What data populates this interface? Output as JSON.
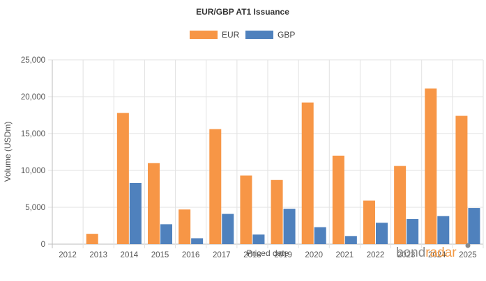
{
  "chart_data": {
    "type": "bar",
    "title": "EUR/GBP AT1 Issuance",
    "xlabel": "Priced date",
    "ylabel": "Volume (USDm)",
    "categories": [
      "2012",
      "2013",
      "2014",
      "2015",
      "2016",
      "2017",
      "2018",
      "2019",
      "2020",
      "2021",
      "2022",
      "2023",
      "2024",
      "2025"
    ],
    "series": [
      {
        "name": "EUR",
        "color": "#f79646",
        "values": [
          0,
          1400,
          17800,
          11000,
          4700,
          15600,
          9300,
          8700,
          19200,
          12000,
          5900,
          10600,
          21100,
          17400
        ]
      },
      {
        "name": "GBP",
        "color": "#4f81bd",
        "values": [
          0,
          0,
          8300,
          2700,
          800,
          4100,
          1300,
          4800,
          2300,
          1100,
          2900,
          3400,
          3800,
          4900
        ]
      }
    ],
    "ylim": [
      0,
      25000
    ],
    "yticks": [
      "0",
      "5,000",
      "10,000",
      "15,000",
      "20,000",
      "25,000"
    ],
    "grid": true,
    "legend_position": "top-center"
  },
  "watermark": {
    "part1": "bond",
    "part2": "radar"
  }
}
